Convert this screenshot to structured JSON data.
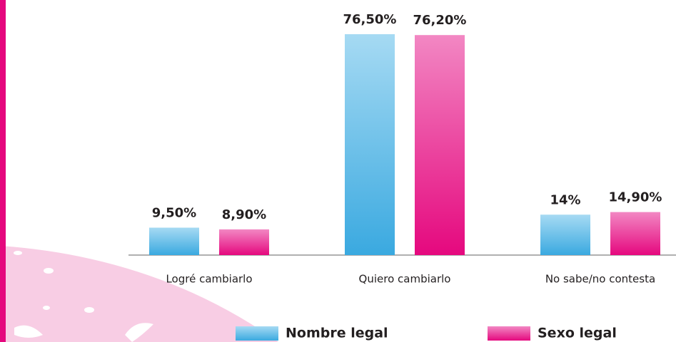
{
  "chart_data": {
    "type": "bar",
    "categories": [
      "Logré cambiarlo",
      "Quiero cambiarlo",
      "No sabe/no contesta"
    ],
    "series": [
      {
        "name": "Nombre legal",
        "color": "#3aa9e0",
        "values": [
          9.5,
          76.5,
          14
        ],
        "value_labels": [
          "9,50%",
          "76,50%",
          "14%"
        ]
      },
      {
        "name": "Sexo legal",
        "color": "#e5087e",
        "values": [
          8.9,
          76.2,
          14.9
        ],
        "value_labels": [
          "8,90%",
          "76,20%",
          "14,90%"
        ]
      }
    ]
  }
}
